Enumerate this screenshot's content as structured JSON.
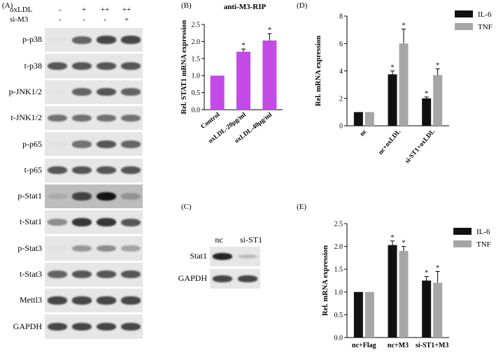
{
  "panels": {
    "A": {
      "label": "(A)",
      "header_rows": [
        {
          "name": "oxLDL",
          "signs": [
            "-",
            "+",
            "++",
            "++"
          ]
        },
        {
          "name": "si-M3",
          "signs": [
            "-",
            "-",
            "-",
            "+"
          ]
        }
      ],
      "rows": [
        {
          "label": "p-p38",
          "intensity": [
            0.05,
            0.75,
            0.85,
            0.85
          ]
        },
        {
          "label": "t-p38",
          "intensity": [
            0.8,
            0.8,
            0.8,
            0.8
          ]
        },
        {
          "label": "p-JNK1/2",
          "intensity": [
            0.05,
            0.75,
            0.8,
            0.75
          ]
        },
        {
          "label": "t-JNK1/2",
          "intensity": [
            0.7,
            0.7,
            0.7,
            0.7
          ]
        },
        {
          "label": "p-p65",
          "intensity": [
            0.05,
            0.7,
            0.8,
            0.75
          ]
        },
        {
          "label": "t-p65",
          "intensity": [
            0.8,
            0.8,
            0.8,
            0.8
          ]
        },
        {
          "label": "p-Stat1",
          "intensity": [
            0.35,
            0.85,
            1.0,
            0.5
          ]
        },
        {
          "label": "t-Stat1",
          "intensity": [
            0.6,
            0.9,
            0.9,
            0.8
          ]
        },
        {
          "label": "p-Stat3",
          "intensity": [
            0.05,
            0.55,
            0.6,
            0.5
          ]
        },
        {
          "label": "t-Stat3",
          "intensity": [
            0.75,
            0.8,
            0.8,
            0.8
          ]
        },
        {
          "label": "Mettl3",
          "intensity": [
            0.85,
            0.85,
            0.85,
            0.85
          ]
        },
        {
          "label": "GAPDH",
          "intensity": [
            0.85,
            0.85,
            0.85,
            0.85
          ]
        }
      ]
    },
    "B": {
      "label": "(B)",
      "chart_data": {
        "type": "bar",
        "title": "anti-M3-RIP",
        "ylabel": "Rel. STAT1 mRNA expression",
        "categories": [
          "Control",
          "oxLDL-20μg/ml",
          "oxLDL-40μg/ml"
        ],
        "values": [
          1.0,
          1.7,
          2.03
        ],
        "errors": [
          0,
          0.08,
          0.2
        ],
        "significance": [
          "",
          "*",
          "*"
        ],
        "ylim": [
          0,
          2.5
        ],
        "yticks": [
          "0.0",
          "0.5",
          "1.0",
          "1.5",
          "2.0",
          "2.5"
        ],
        "color": "#c44ae8"
      }
    },
    "C": {
      "label": "(C)",
      "lanes": [
        "nc",
        "si-ST1"
      ],
      "rows": [
        {
          "label": "Stat1",
          "intensity": [
            0.95,
            0.35
          ]
        },
        {
          "label": "GAPDH",
          "intensity": [
            0.85,
            0.85
          ]
        }
      ]
    },
    "D": {
      "label": "(D)",
      "chart_data": {
        "type": "bar",
        "ylabel": "Rel. mRNA expression",
        "categories": [
          "nc",
          "nc+oxLDL",
          "si-ST1+oxLDL"
        ],
        "series": [
          {
            "name": "IL-6",
            "values": [
              1.0,
              3.75,
              2.0
            ],
            "errors": [
              0,
              0.25,
              0.1
            ],
            "significance": [
              "",
              "*",
              "*"
            ],
            "color": "#111111"
          },
          {
            "name": "TNF",
            "values": [
              1.0,
              6.0,
              3.7
            ],
            "errors": [
              0,
              1.05,
              0.45
            ],
            "significance": [
              "",
              "*",
              "*"
            ],
            "color": "#a6a6a6"
          }
        ],
        "ylim": [
          0,
          8
        ],
        "yticks": [
          "0",
          "2",
          "4",
          "6",
          "8"
        ],
        "legend": "top-right"
      }
    },
    "E": {
      "label": "(E)",
      "chart_data": {
        "type": "bar",
        "ylabel": "Rel. mRNA expression",
        "categories": [
          "nc+Flag",
          "nc+M3",
          "si-ST1+M3"
        ],
        "series": [
          {
            "name": "IL-6",
            "values": [
              1.0,
              2.03,
              1.25
            ],
            "errors": [
              0,
              0.09,
              0.09
            ],
            "significance": [
              "",
              "*",
              "*"
            ],
            "color": "#111111"
          },
          {
            "name": "TNF",
            "values": [
              1.0,
              1.9,
              1.2
            ],
            "errors": [
              0,
              0.1,
              0.25
            ],
            "significance": [
              "",
              "*",
              "*"
            ],
            "color": "#a6a6a6"
          }
        ],
        "ylim": [
          0,
          2.5
        ],
        "yticks": [
          "0.0",
          "0.5",
          "1.0",
          "1.5",
          "2.0",
          "2.5"
        ],
        "legend": "top-right"
      }
    }
  }
}
